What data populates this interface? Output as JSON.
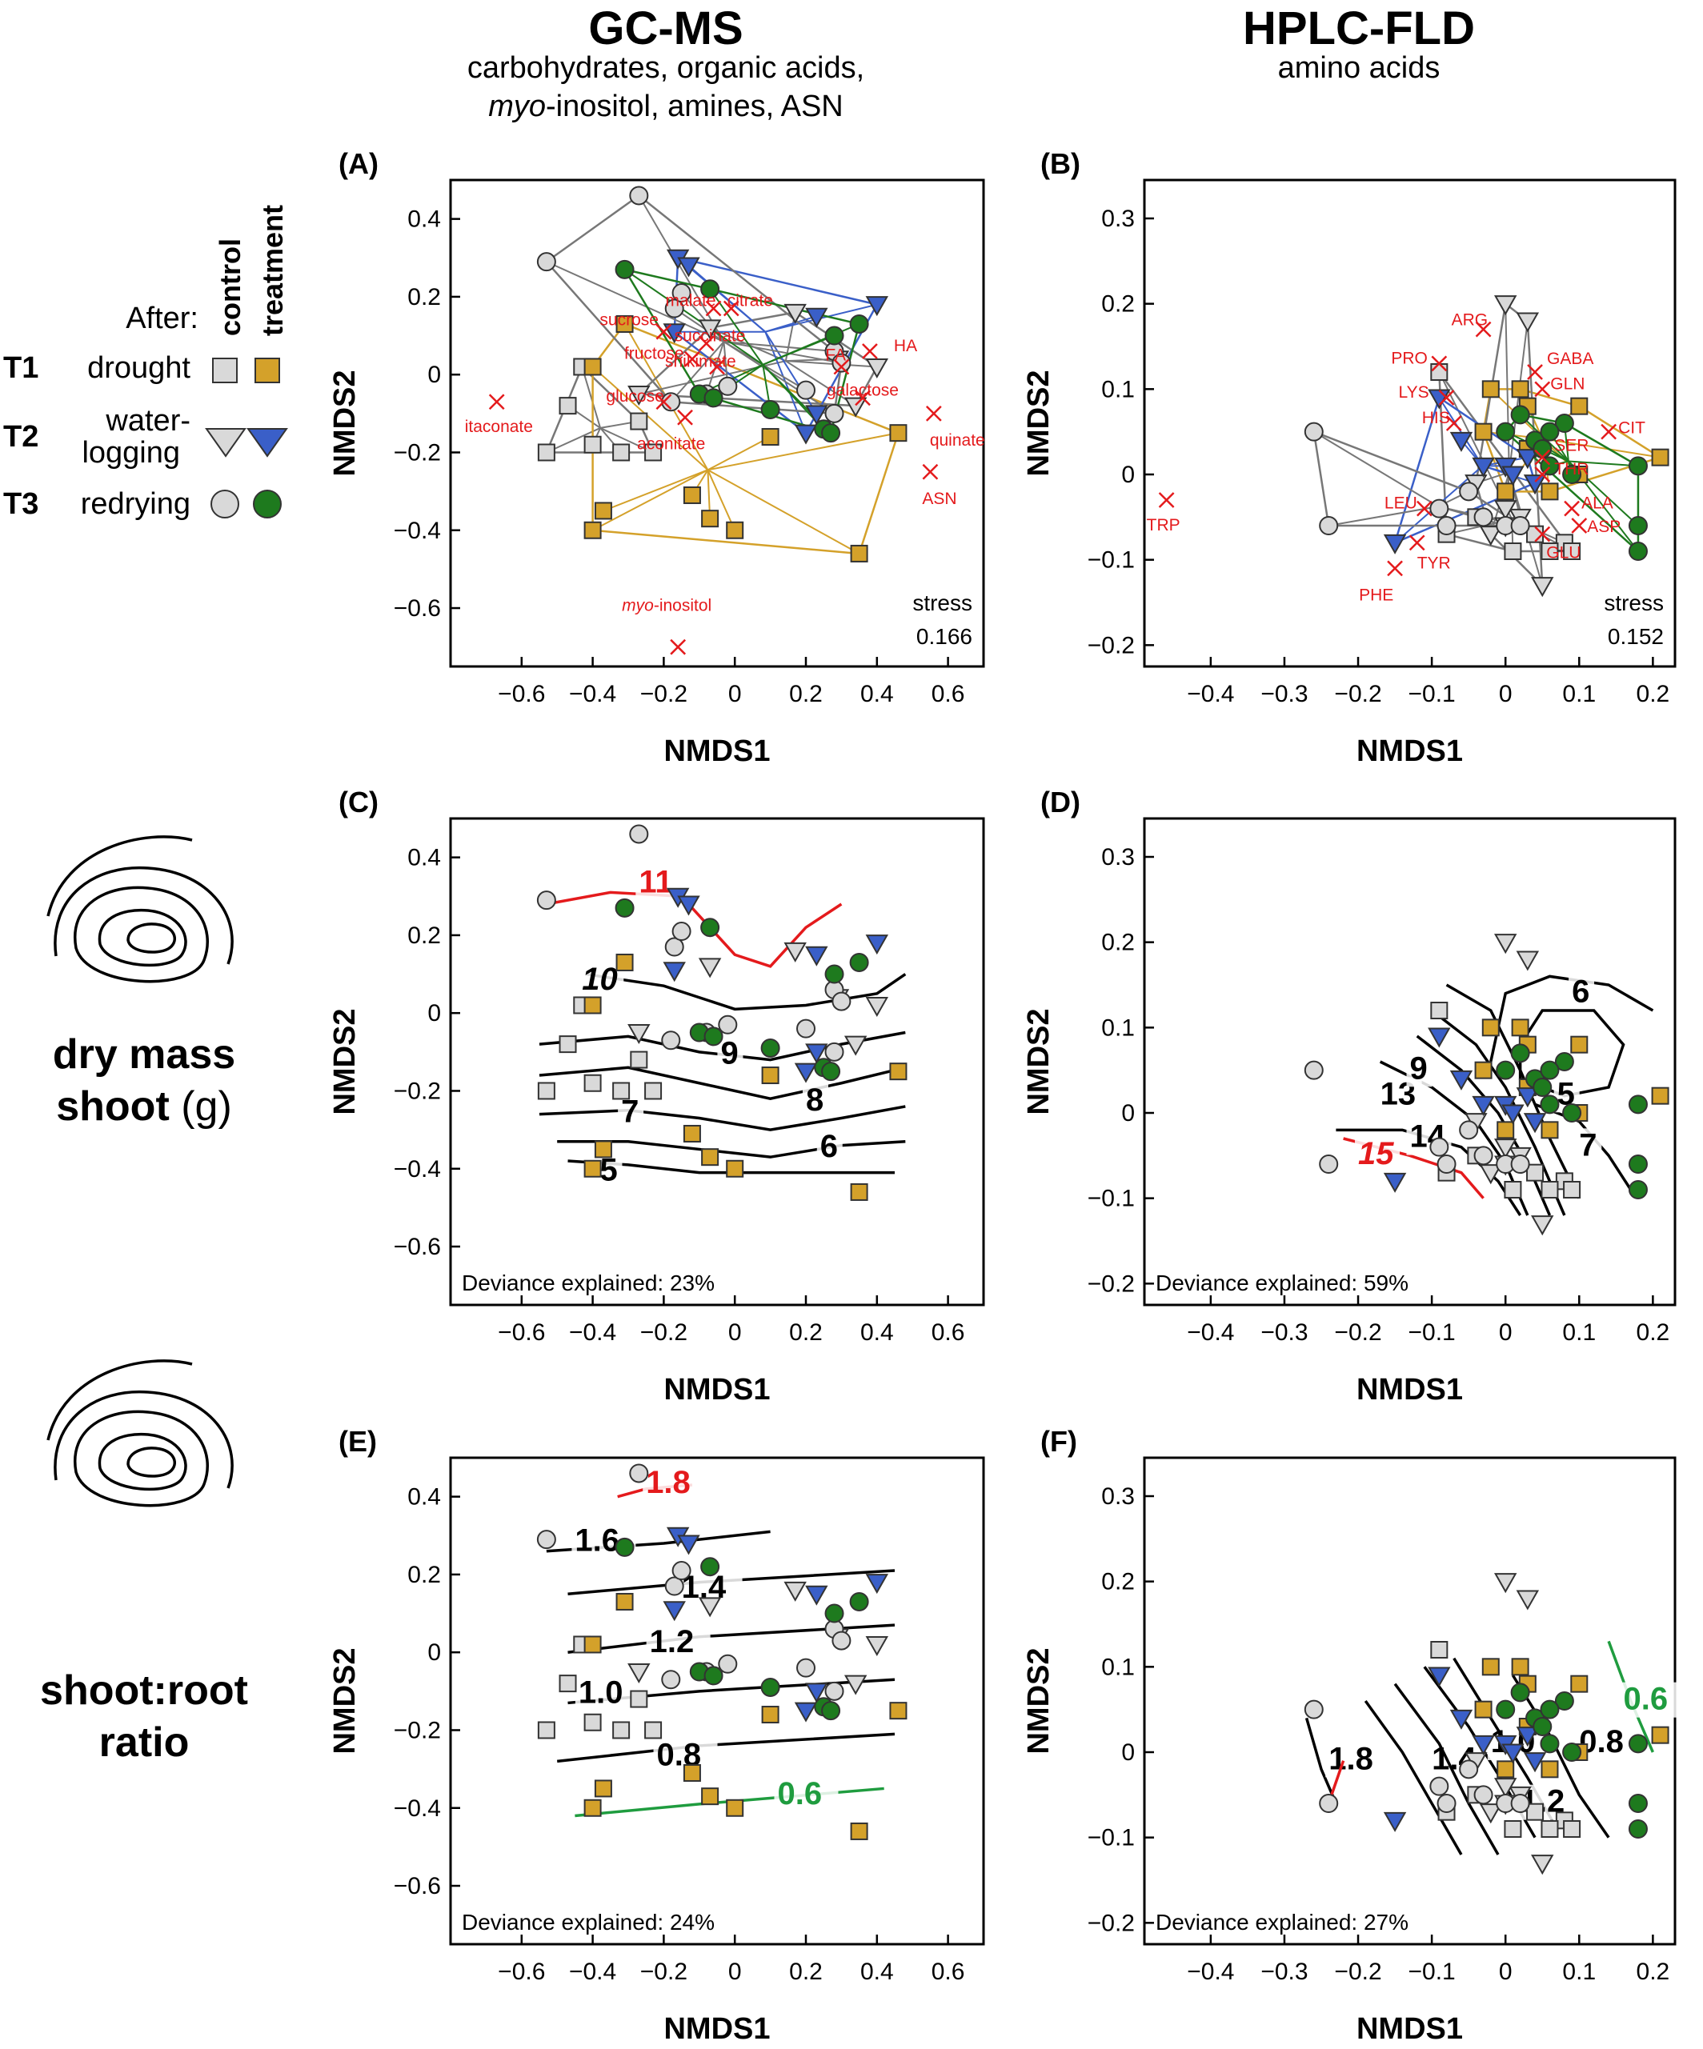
{
  "columns": [
    {
      "title": "GC-MS",
      "subtitle_lines": [
        "carbohydrates, organic acids,",
        "myo-inositol, amines, ASN"
      ]
    },
    {
      "title": "HPLC-FLD",
      "subtitle_lines": [
        "amino acids"
      ]
    }
  ],
  "legend": {
    "header_after": "After:",
    "col_control": "control",
    "col_treatment": "treatment",
    "rows": [
      {
        "code": "T1",
        "label": "drought",
        "label2": ""
      },
      {
        "code": "T2",
        "label": "water-",
        "label2": "logging"
      },
      {
        "code": "T3",
        "label": "redrying",
        "label2": ""
      }
    ]
  },
  "row_labels": {
    "dry_mass": {
      "line1": "dry mass",
      "line2a": "shoot",
      "line2b": " (g)"
    },
    "ratio": {
      "line1": "shoot:root",
      "line2": "ratio"
    }
  },
  "colors": {
    "drought_control": "#d9d9d9",
    "drought_treatment": "#d4a12a",
    "waterlogging_control": "#d9d9d9",
    "waterlogging_treatment": "#3a5fc8",
    "redrying_control": "#d9d9d9",
    "redrying_treatment": "#1e7a1e",
    "vector": "#e41a1c",
    "hull_control": "#777777"
  },
  "panels": [
    {
      "id": "A",
      "label": "(A)",
      "xlabel": "NMDS1",
      "ylabel": "NMDS2",
      "stress_label": "stress",
      "stress": "0.166",
      "deviance": ""
    },
    {
      "id": "B",
      "label": "(B)",
      "xlabel": "NMDS1",
      "ylabel": "NMDS2",
      "stress_label": "stress",
      "stress": "0.152",
      "deviance": ""
    },
    {
      "id": "C",
      "label": "(C)",
      "xlabel": "NMDS1",
      "ylabel": "NMDS2",
      "stress_label": "",
      "stress": "",
      "deviance": "Deviance explained: 23%"
    },
    {
      "id": "D",
      "label": "(D)",
      "xlabel": "NMDS1",
      "ylabel": "NMDS2",
      "stress_label": "",
      "stress": "",
      "deviance": "Deviance explained: 59%"
    },
    {
      "id": "E",
      "label": "(E)",
      "xlabel": "NMDS1",
      "ylabel": "NMDS2",
      "stress_label": "",
      "stress": "",
      "deviance": "Deviance explained: 24%"
    },
    {
      "id": "F",
      "label": "(F)",
      "xlabel": "NMDS1",
      "ylabel": "NMDS2",
      "stress_label": "",
      "stress": "",
      "deviance": "Deviance explained: 27%"
    }
  ],
  "chart_data": [
    {
      "panel": "A",
      "type": "scatter",
      "xlim": [
        -0.8,
        0.7
      ],
      "ylim": [
        -0.75,
        0.5
      ],
      "xticks": [
        -0.6,
        -0.4,
        -0.2,
        0,
        0.2,
        0.4,
        0.6
      ],
      "yticks": [
        -0.6,
        -0.4,
        -0.2,
        0,
        0.2,
        0.4
      ],
      "series": [
        {
          "group": "drought_control",
          "points": [
            [
              -0.53,
              -0.2
            ],
            [
              -0.47,
              -0.08
            ],
            [
              -0.4,
              -0.18
            ],
            [
              -0.32,
              -0.2
            ],
            [
              -0.23,
              -0.2
            ],
            [
              -0.27,
              -0.12
            ],
            [
              -0.43,
              0.02
            ]
          ]
        },
        {
          "group": "drought_treatment",
          "points": [
            [
              -0.31,
              0.13
            ],
            [
              -0.4,
              0.02
            ],
            [
              -0.37,
              -0.35
            ],
            [
              -0.4,
              -0.4
            ],
            [
              -0.12,
              -0.31
            ],
            [
              -0.07,
              -0.37
            ],
            [
              0.0,
              -0.4
            ],
            [
              0.1,
              -0.16
            ],
            [
              0.35,
              -0.46
            ],
            [
              0.46,
              -0.15
            ]
          ]
        },
        {
          "group": "waterlogging_control",
          "points": [
            [
              -0.27,
              -0.05
            ],
            [
              -0.07,
              0.12
            ],
            [
              0.17,
              0.16
            ],
            [
              0.29,
              0.04
            ],
            [
              0.4,
              0.02
            ],
            [
              0.34,
              -0.08
            ]
          ]
        },
        {
          "group": "waterlogging_treatment",
          "points": [
            [
              -0.16,
              0.3
            ],
            [
              -0.13,
              0.28
            ],
            [
              0.23,
              0.15
            ],
            [
              0.4,
              0.18
            ],
            [
              -0.17,
              0.11
            ],
            [
              0.2,
              -0.15
            ],
            [
              0.23,
              -0.1
            ]
          ]
        },
        {
          "group": "redrying_control",
          "points": [
            [
              -0.53,
              0.29
            ],
            [
              -0.27,
              0.46
            ],
            [
              -0.17,
              0.17
            ],
            [
              -0.15,
              0.21
            ],
            [
              -0.18,
              -0.07
            ],
            [
              -0.08,
              -0.05
            ],
            [
              -0.02,
              -0.03
            ],
            [
              0.2,
              -0.04
            ],
            [
              0.28,
              0.06
            ],
            [
              0.28,
              -0.1
            ],
            [
              0.3,
              0.03
            ]
          ]
        },
        {
          "group": "redrying_treatment",
          "points": [
            [
              -0.31,
              0.27
            ],
            [
              -0.07,
              0.22
            ],
            [
              0.35,
              0.13
            ],
            [
              0.28,
              0.1
            ],
            [
              -0.1,
              -0.05
            ],
            [
              -0.06,
              -0.06
            ],
            [
              0.1,
              -0.09
            ],
            [
              0.25,
              -0.14
            ],
            [
              0.27,
              -0.15
            ]
          ]
        }
      ],
      "vectors": [
        {
          "label": "itaconate",
          "x": -0.67,
          "y": -0.07
        },
        {
          "label": "sucrose",
          "x": -0.2,
          "y": 0.11
        },
        {
          "label": "malate",
          "x": -0.06,
          "y": 0.17
        },
        {
          "label": "citrate",
          "x": -0.01,
          "y": 0.17
        },
        {
          "label": "succinate",
          "x": -0.08,
          "y": 0.08
        },
        {
          "label": "fructose",
          "x": -0.12,
          "y": 0.04
        },
        {
          "label": "shikimate",
          "x": -0.05,
          "y": 0.02
        },
        {
          "label": "glucose",
          "x": -0.2,
          "y": -0.07
        },
        {
          "label": "aconitate",
          "x": -0.14,
          "y": -0.11
        },
        {
          "label": "FA",
          "x": 0.3,
          "y": 0.02
        },
        {
          "label": "HA",
          "x": 0.38,
          "y": 0.06
        },
        {
          "label": "galactose",
          "x": 0.36,
          "y": -0.06
        },
        {
          "label": "quinate",
          "x": 0.56,
          "y": -0.1
        },
        {
          "label": "ASN",
          "x": 0.55,
          "y": -0.25
        },
        {
          "label": "myo-inositol",
          "x": -0.16,
          "y": -0.7
        }
      ]
    },
    {
      "panel": "B",
      "type": "scatter",
      "xlim": [
        -0.49,
        0.23
      ],
      "ylim": [
        -0.225,
        0.345
      ],
      "xticks": [
        -0.4,
        -0.3,
        -0.2,
        -0.1,
        0,
        0.1,
        0.2
      ],
      "yticks": [
        -0.2,
        -0.1,
        0,
        0.1,
        0.2,
        0.3
      ],
      "series": [
        {
          "group": "drought_control",
          "points": [
            [
              -0.09,
              0.12
            ],
            [
              -0.04,
              -0.05
            ],
            [
              -0.08,
              -0.07
            ],
            [
              0.01,
              -0.09
            ],
            [
              0.04,
              -0.07
            ],
            [
              0.08,
              -0.08
            ],
            [
              0.09,
              -0.09
            ],
            [
              0.06,
              -0.09
            ]
          ]
        },
        {
          "group": "drought_treatment",
          "points": [
            [
              -0.02,
              0.1
            ],
            [
              0.02,
              0.1
            ],
            [
              0.03,
              0.08
            ],
            [
              0.1,
              0.08
            ],
            [
              0.21,
              0.02
            ],
            [
              0.1,
              0.0
            ],
            [
              0.06,
              -0.02
            ],
            [
              0.0,
              -0.02
            ],
            [
              -0.03,
              0.05
            ],
            [
              0.03,
              0.03
            ]
          ]
        },
        {
          "group": "waterlogging_control",
          "points": [
            [
              0.0,
              0.2
            ],
            [
              0.03,
              0.18
            ],
            [
              -0.04,
              -0.01
            ],
            [
              0.02,
              -0.05
            ],
            [
              0.0,
              -0.06
            ],
            [
              -0.02,
              -0.07
            ],
            [
              0.05,
              -0.13
            ],
            [
              0.0,
              -0.04
            ]
          ]
        },
        {
          "group": "waterlogging_treatment",
          "points": [
            [
              -0.15,
              -0.08
            ],
            [
              -0.09,
              0.09
            ],
            [
              -0.06,
              0.04
            ],
            [
              -0.03,
              0.01
            ],
            [
              0.0,
              0.01
            ],
            [
              0.03,
              0.02
            ],
            [
              0.01,
              0.0
            ],
            [
              0.04,
              -0.01
            ]
          ]
        },
        {
          "group": "redrying_control",
          "points": [
            [
              -0.26,
              0.05
            ],
            [
              -0.24,
              -0.06
            ],
            [
              -0.09,
              -0.04
            ],
            [
              -0.08,
              -0.06
            ],
            [
              -0.05,
              -0.02
            ],
            [
              -0.03,
              -0.05
            ],
            [
              0.0,
              -0.06
            ],
            [
              0.02,
              -0.06
            ]
          ]
        },
        {
          "group": "redrying_treatment",
          "points": [
            [
              0.0,
              0.05
            ],
            [
              0.02,
              0.07
            ],
            [
              0.04,
              0.04
            ],
            [
              0.05,
              0.03
            ],
            [
              0.06,
              0.01
            ],
            [
              0.09,
              0.0
            ],
            [
              0.18,
              0.01
            ],
            [
              0.18,
              -0.06
            ],
            [
              0.18,
              -0.09
            ],
            [
              0.08,
              0.06
            ],
            [
              0.06,
              0.05
            ]
          ]
        }
      ],
      "vectors": [
        {
          "label": "TRP",
          "x": -0.46,
          "y": -0.03
        },
        {
          "label": "PRO",
          "x": -0.09,
          "y": 0.13
        },
        {
          "label": "ARG",
          "x": -0.03,
          "y": 0.17
        },
        {
          "label": "GABA",
          "x": 0.04,
          "y": 0.12
        },
        {
          "label": "GLN",
          "x": 0.05,
          "y": 0.1
        },
        {
          "label": "CIT",
          "x": 0.14,
          "y": 0.05
        },
        {
          "label": "LYS",
          "x": -0.08,
          "y": 0.09
        },
        {
          "label": "HIS",
          "x": -0.07,
          "y": 0.06
        },
        {
          "label": "SER",
          "x": 0.05,
          "y": 0.02
        },
        {
          "label": "THR",
          "x": 0.05,
          "y": 0.0
        },
        {
          "label": "ALA",
          "x": 0.09,
          "y": -0.04
        },
        {
          "label": "ASP",
          "x": 0.1,
          "y": -0.06
        },
        {
          "label": "GLU",
          "x": 0.05,
          "y": -0.07
        },
        {
          "label": "LEU",
          "x": -0.11,
          "y": -0.04
        },
        {
          "label": "TYR",
          "x": -0.12,
          "y": -0.08
        },
        {
          "label": "PHE",
          "x": -0.15,
          "y": -0.11
        }
      ]
    },
    {
      "panel": "C",
      "type": "scatter",
      "surface": "dry mass shoot (g)",
      "contour_labels": [
        "11",
        "10",
        "9",
        "8",
        "7",
        "6",
        "5"
      ]
    },
    {
      "panel": "D",
      "type": "scatter",
      "surface": "dry mass shoot (g)",
      "contour_labels": [
        "15",
        "14",
        "13",
        "9",
        "7",
        "6",
        "5"
      ]
    },
    {
      "panel": "E",
      "type": "scatter",
      "surface": "shoot:root ratio",
      "contour_labels": [
        "1.8",
        "1.6",
        "1.4",
        "1.2",
        "1.0",
        "0.8",
        "0.6"
      ]
    },
    {
      "panel": "F",
      "type": "scatter",
      "surface": "shoot:root ratio",
      "contour_labels": [
        "1.8",
        "1.4",
        "1.0",
        "1.2",
        "0.8",
        "0.6"
      ]
    }
  ]
}
